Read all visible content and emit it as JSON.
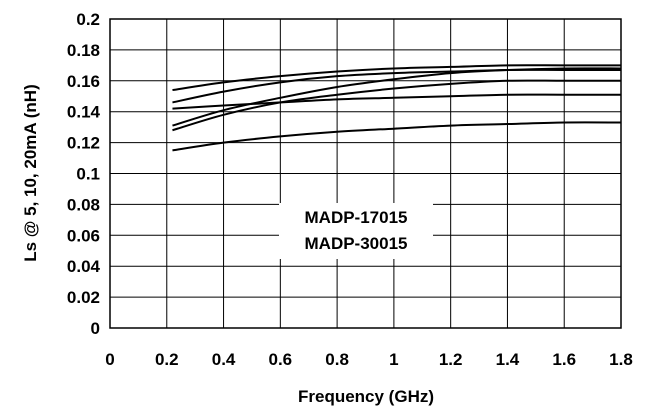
{
  "chart_data": {
    "type": "line",
    "xlabel": "Frequency (GHz)",
    "ylabel": "Ls @ 5, 10, 20mA (nH)",
    "xlim": [
      0,
      1.8
    ],
    "ylim": [
      0,
      0.2
    ],
    "x_ticks": [
      "0",
      "0.2",
      "0.4",
      "0.6",
      "0.8",
      "1",
      "1.2",
      "1.4",
      "1.6",
      "1.8"
    ],
    "y_ticks": [
      "0",
      "0.02",
      "0.04",
      "0.06",
      "0.08",
      "0.1",
      "0.12",
      "0.14",
      "0.16",
      "0.18",
      "0.2"
    ],
    "grid": true,
    "annotation_lines": [
      "MADP-17015",
      "MADP-30015"
    ],
    "series": [
      {
        "x": [
          0.22,
          0.4,
          0.6,
          0.8,
          1.0,
          1.2,
          1.4,
          1.6,
          1.8
        ],
        "y": [
          0.154,
          0.159,
          0.163,
          0.166,
          0.168,
          0.169,
          0.17,
          0.17,
          0.17
        ]
      },
      {
        "x": [
          0.22,
          0.4,
          0.6,
          0.8,
          1.0,
          1.2,
          1.4,
          1.6,
          1.8
        ],
        "y": [
          0.146,
          0.153,
          0.159,
          0.163,
          0.165,
          0.166,
          0.167,
          0.167,
          0.167
        ]
      },
      {
        "x": [
          0.22,
          0.4,
          0.6,
          0.8,
          1.0,
          1.2,
          1.4,
          1.6,
          1.8
        ],
        "y": [
          0.131,
          0.141,
          0.149,
          0.156,
          0.161,
          0.165,
          0.167,
          0.168,
          0.168
        ]
      },
      {
        "x": [
          0.22,
          0.4,
          0.6,
          0.8,
          1.0,
          1.2,
          1.4,
          1.6,
          1.8
        ],
        "y": [
          0.128,
          0.138,
          0.146,
          0.151,
          0.155,
          0.158,
          0.16,
          0.16,
          0.16
        ]
      },
      {
        "x": [
          0.22,
          0.4,
          0.6,
          0.8,
          1.0,
          1.2,
          1.4,
          1.6,
          1.8
        ],
        "y": [
          0.142,
          0.144,
          0.146,
          0.148,
          0.149,
          0.15,
          0.151,
          0.151,
          0.151
        ]
      },
      {
        "x": [
          0.22,
          0.4,
          0.6,
          0.8,
          1.0,
          1.2,
          1.4,
          1.6,
          1.8
        ],
        "y": [
          0.115,
          0.12,
          0.124,
          0.127,
          0.129,
          0.131,
          0.132,
          0.133,
          0.133
        ]
      }
    ]
  }
}
